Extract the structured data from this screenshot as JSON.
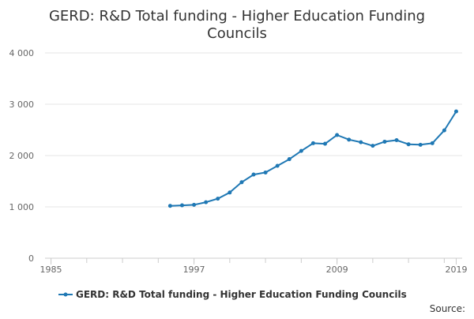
{
  "chart_data": {
    "type": "line",
    "title_lines": [
      "GERD: R&D Total funding - Higher Education Funding",
      "Councils"
    ],
    "xlabel": "",
    "ylabel": "",
    "xlim": [
      1984.5,
      2019.5
    ],
    "ylim": [
      0,
      4000
    ],
    "x_ticks": [
      1985,
      1997,
      2009,
      2019
    ],
    "x_tick_labels": [
      "1985",
      "1997",
      "2009",
      "2019"
    ],
    "y_ticks": [
      0,
      1000,
      2000,
      3000,
      4000
    ],
    "y_tick_labels": [
      "0",
      "1 000",
      "2 000",
      "3 000",
      "4 000"
    ],
    "grid": "horizontal",
    "legend_position": "bottom",
    "series": [
      {
        "name": "GERD: R&D Total funding - Higher Education Funding Councils",
        "color": "#1f78b4",
        "x": [
          1995,
          1996,
          1997,
          1998,
          1999,
          2000,
          2001,
          2002,
          2003,
          2004,
          2005,
          2006,
          2007,
          2008,
          2009,
          2010,
          2011,
          2012,
          2013,
          2014,
          2015,
          2016,
          2017,
          2018,
          2019
        ],
        "values": [
          1020,
          1030,
          1040,
          1090,
          1160,
          1280,
          1480,
          1630,
          1670,
          1800,
          1930,
          2090,
          2240,
          2230,
          2400,
          2310,
          2260,
          2190,
          2270,
          2300,
          2220,
          2210,
          2240,
          2490,
          2860
        ]
      }
    ],
    "source_label": "Source:"
  }
}
